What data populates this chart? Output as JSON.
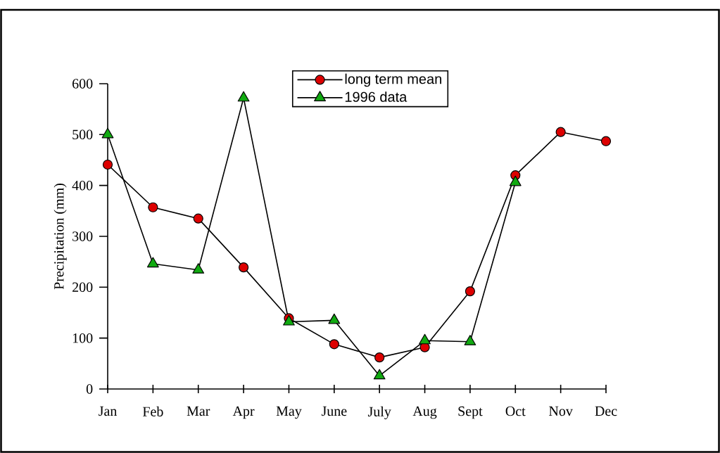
{
  "chart_data": {
    "type": "line",
    "ylabel": "Precipitation (mm)",
    "categories": [
      "Jan",
      "Feb",
      "Mar",
      "Apr",
      "May",
      "June",
      "July",
      "Aug",
      "Sept",
      "Oct",
      "Nov",
      "Dec"
    ],
    "ylim": [
      0,
      600
    ],
    "yticks": [
      0,
      100,
      200,
      300,
      400,
      500,
      600
    ],
    "grid": false,
    "legend": "top",
    "line_style": "solid",
    "series": [
      {
        "name": "long term mean",
        "color": "#dd0000",
        "marker": "circle",
        "values": [
          441,
          357,
          335,
          239,
          139,
          88,
          62,
          82,
          192,
          420,
          505,
          487
        ]
      },
      {
        "name": "1996 data",
        "color": "#11aa11",
        "marker": "triangle",
        "values": [
          500,
          246,
          234,
          572,
          132,
          135,
          26,
          95,
          93,
          406,
          null,
          null
        ]
      }
    ]
  }
}
